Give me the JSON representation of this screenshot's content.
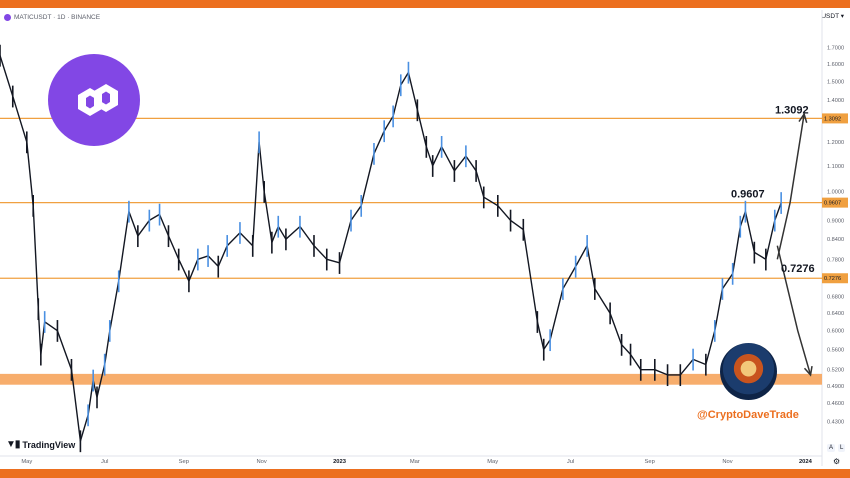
{
  "header": {
    "symbol": "MATICUSDT · 1D · BINANCE",
    "currency": "USDT"
  },
  "watermark": {
    "brand": "TradingView"
  },
  "author": {
    "handle": "@CryptoDaveTrade"
  },
  "scale_buttons": {
    "auto": "A",
    "log": "L"
  },
  "colors": {
    "accent": "#ec6f1f",
    "level_line": "#f0a040",
    "support_zone": "#f7ad6c",
    "logo": "#8247e5",
    "candle": "#131722",
    "up_candle": "#4a90e2",
    "axis_text": "#5d606b"
  },
  "chart_data": {
    "type": "line",
    "title": "",
    "xlabel": "",
    "ylabel": "",
    "yscale": "log",
    "ylim": [
      0.38,
      1.95
    ],
    "xlim": [
      "2022-04-10",
      "2024-01-14"
    ],
    "grid": false,
    "legend": "none",
    "x_ticks": [
      {
        "label": "May",
        "date": "2022-05-01"
      },
      {
        "label": "Jul",
        "date": "2022-07-01"
      },
      {
        "label": "Sep",
        "date": "2022-09-01"
      },
      {
        "label": "Nov",
        "date": "2022-11-01"
      },
      {
        "label": "2023",
        "date": "2023-01-01"
      },
      {
        "label": "Mar",
        "date": "2023-03-01"
      },
      {
        "label": "May",
        "date": "2023-05-01"
      },
      {
        "label": "Jul",
        "date": "2023-07-01"
      },
      {
        "label": "Sep",
        "date": "2023-09-01"
      },
      {
        "label": "Nov",
        "date": "2023-11-01"
      },
      {
        "label": "2024",
        "date": "2024-01-01"
      }
    ],
    "y_ticks": [
      "1.7000",
      "1.6000",
      "1.5000",
      "1.4000",
      "1.2000",
      "1.1000",
      "1.0000",
      "0.9000",
      "0.8400",
      "0.7800",
      "0.6800",
      "0.6400",
      "0.6000",
      "0.5600",
      "0.5200",
      "0.4900",
      "0.4600",
      "0.4300"
    ],
    "series": [
      {
        "x": [
          "2022-04-10",
          "2022-04-20",
          "2022-05-01",
          "2022-05-06",
          "2022-05-10",
          "2022-05-12",
          "2022-05-15",
          "2022-05-25",
          "2022-06-05",
          "2022-06-12",
          "2022-06-18",
          "2022-06-22",
          "2022-06-25",
          "2022-07-01",
          "2022-07-05",
          "2022-07-12",
          "2022-07-20",
          "2022-07-27",
          "2022-08-05",
          "2022-08-13",
          "2022-08-20",
          "2022-08-28",
          "2022-09-05",
          "2022-09-12",
          "2022-09-20",
          "2022-09-28",
          "2022-10-05",
          "2022-10-15",
          "2022-10-25",
          "2022-10-30",
          "2022-11-03",
          "2022-11-09",
          "2022-11-14",
          "2022-11-20",
          "2022-12-01",
          "2022-12-12",
          "2022-12-22",
          "2023-01-01",
          "2023-01-10",
          "2023-01-18",
          "2023-01-28",
          "2023-02-05",
          "2023-02-12",
          "2023-02-18",
          "2023-02-24",
          "2023-03-03",
          "2023-03-10",
          "2023-03-15",
          "2023-03-22",
          "2023-04-01",
          "2023-04-10",
          "2023-04-18",
          "2023-04-24",
          "2023-05-05",
          "2023-05-15",
          "2023-05-25",
          "2023-06-05",
          "2023-06-10",
          "2023-06-15",
          "2023-06-25",
          "2023-07-05",
          "2023-07-14",
          "2023-07-20",
          "2023-08-01",
          "2023-08-10",
          "2023-08-17",
          "2023-08-25",
          "2023-09-05",
          "2023-09-15",
          "2023-09-25",
          "2023-10-05",
          "2023-10-15",
          "2023-10-22",
          "2023-10-28",
          "2023-11-05",
          "2023-11-11",
          "2023-11-15",
          "2023-11-22",
          "2023-12-01",
          "2023-12-08",
          "2023-12-13"
        ],
        "values": [
          1.65,
          1.42,
          1.2,
          0.95,
          0.65,
          0.55,
          0.62,
          0.6,
          0.52,
          0.4,
          0.44,
          0.5,
          0.47,
          0.53,
          0.6,
          0.72,
          0.93,
          0.85,
          0.9,
          0.92,
          0.85,
          0.78,
          0.72,
          0.78,
          0.79,
          0.76,
          0.82,
          0.86,
          0.82,
          1.2,
          1.0,
          0.83,
          0.88,
          0.84,
          0.88,
          0.82,
          0.78,
          0.77,
          0.9,
          0.95,
          1.15,
          1.25,
          1.32,
          1.48,
          1.55,
          1.35,
          1.18,
          1.1,
          1.18,
          1.08,
          1.14,
          1.08,
          0.98,
          0.95,
          0.9,
          0.87,
          0.62,
          0.56,
          0.58,
          0.7,
          0.76,
          0.82,
          0.7,
          0.64,
          0.57,
          0.55,
          0.52,
          0.52,
          0.51,
          0.51,
          0.54,
          0.53,
          0.6,
          0.7,
          0.74,
          0.88,
          0.93,
          0.8,
          0.78,
          0.9,
          0.96
        ]
      }
    ],
    "levels": [
      {
        "label": "1.3092",
        "value": 1.3092
      },
      {
        "label": "0.9607",
        "value": 0.9607
      },
      {
        "label": "0.7276",
        "value": 0.7276
      }
    ],
    "support_zone": [
      0.492,
      0.512
    ],
    "projections": [
      {
        "from_date": "2023-12-10",
        "from_value": 0.78,
        "mid_date": "2023-12-20",
        "mid_value": 0.9607,
        "to_date": "2023-12-31",
        "to_value": 1.33
      },
      {
        "from_date": "2023-12-10",
        "from_value": 0.82,
        "mid_date": "2023-12-26",
        "mid_value": 0.6,
        "to_date": "2024-01-05",
        "to_value": 0.51
      }
    ]
  }
}
